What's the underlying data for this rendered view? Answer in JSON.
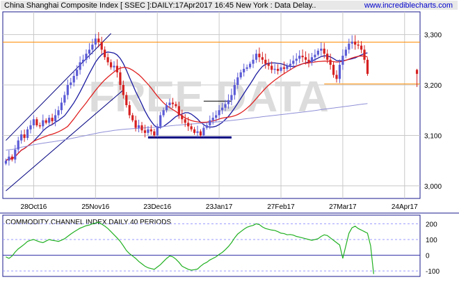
{
  "header": {
    "title": "China Shanghai Composite Index [ SSEC ]:DAILY:17Apr2017 16:45 New York : Data Delay..",
    "site": "www.incrediblecharts.com"
  },
  "watermark": "FREE DATA",
  "colors": {
    "background": "#ffffff",
    "border": "#1a1a8c",
    "grid": "#c8c8c8",
    "up_candle": "#5b5bd6",
    "down_candle": "#d62020",
    "ma_short": "#1a1aa0",
    "ma_mid": "#e02020",
    "ma_long": "#8f8fd8",
    "orange_line": "#ff8c00",
    "channel": "#000080",
    "support": "#000080",
    "cci_line": "#20b020",
    "cci_level": "#9999ff",
    "watermark": "#dcdcdc",
    "header_bg": "#e8e8e8"
  },
  "chart_data": [
    {
      "type": "candlestick",
      "title": "China Shanghai Composite Index [ SSEC ]:DAILY:17Apr2017 16:45 New York : Data Delay..",
      "y_ticks": [
        "3,000",
        "3,100",
        "3,200",
        "3,300"
      ],
      "y_tick_values": [
        3000,
        3100,
        3200,
        3300
      ],
      "ylim": [
        2975,
        3345
      ],
      "x_ticks": [
        {
          "label": "28Oct16",
          "index": 9
        },
        {
          "label": "25Nov16",
          "index": 29
        },
        {
          "label": "23Dec16",
          "index": 49
        },
        {
          "label": "23Jan17",
          "index": 69
        },
        {
          "label": "27Feb17",
          "index": 89
        },
        {
          "label": "27Mar17",
          "index": 109
        },
        {
          "label": "24Apr17",
          "index": 129
        }
      ],
      "x_range": [
        -1,
        134
      ],
      "grid": true,
      "closes": [
        3050,
        3058,
        3052,
        3072,
        3090,
        3102,
        3095,
        3112,
        3120,
        3132,
        3120,
        3118,
        3130,
        3125,
        3135,
        3128,
        3140,
        3150,
        3165,
        3180,
        3200,
        3205,
        3218,
        3230,
        3245,
        3250,
        3262,
        3270,
        3280,
        3292,
        3285,
        3270,
        3255,
        3245,
        3235,
        3238,
        3225,
        3200,
        3180,
        3160,
        3140,
        3130,
        3115,
        3120,
        3110,
        3105,
        3112,
        3108,
        3100,
        3118,
        3140,
        3150,
        3160,
        3165,
        3162,
        3158,
        3140,
        3132,
        3125,
        3118,
        3112,
        3105,
        3108,
        3100,
        3115,
        3120,
        3130,
        3135,
        3140,
        3150,
        3155,
        3162,
        3170,
        3180,
        3200,
        3215,
        3225,
        3232,
        3235,
        3242,
        3250,
        3262,
        3255,
        3250,
        3242,
        3238,
        3230,
        3232,
        3228,
        3235,
        3232,
        3238,
        3242,
        3248,
        3252,
        3258,
        3255,
        3250,
        3245,
        3255,
        3260,
        3268,
        3272,
        3262,
        3250,
        3240,
        3220,
        3212,
        3240,
        3258,
        3270,
        3282,
        3286,
        3280,
        3278,
        3270,
        3250,
        3222
      ],
      "series": [
        {
          "name": "",
          "values_from": "closes",
          "type": "line",
          "period": 10
        },
        {
          "name": "",
          "values_from": "closes",
          "type": "line",
          "period": 21
        },
        {
          "name": "",
          "values_from": "closes",
          "type": "line",
          "period": 100
        }
      ],
      "horizontal_lines": [
        3285,
        3202
      ],
      "support_line": {
        "from_index": 46,
        "to_index": 73,
        "value": 3096
      },
      "resistance_line": {
        "from_index": 64,
        "to_index": 73,
        "value": 3168
      },
      "channel_upper": {
        "from_index": 0,
        "from_value": 3090,
        "to_index": 34,
        "to_value": 3302
      },
      "channel_lower": {
        "from_index": 0,
        "from_value": 2990,
        "to_index": 38,
        "to_value": 3190
      },
      "latest_bar": {
        "index": 133,
        "open": 3230,
        "high": 3232,
        "low": 3196,
        "close": 3222
      }
    },
    {
      "type": "line",
      "title": "COMMODITY CHANNEL INDEX DAILY 40 PERIODS",
      "y_ticks": [
        "200",
        "100",
        "0",
        "-100"
      ],
      "y_tick_values": [
        200,
        100,
        0,
        -100
      ],
      "ylim": [
        -135,
        255
      ],
      "level_lines": [
        200,
        100,
        0,
        -100,
        -200
      ],
      "values": [
        -10,
        -20,
        -5,
        20,
        40,
        55,
        70,
        88,
        95,
        100,
        92,
        85,
        80,
        90,
        100,
        95,
        92,
        88,
        96,
        105,
        120,
        135,
        148,
        160,
        172,
        180,
        188,
        192,
        200,
        205,
        210,
        198,
        185,
        170,
        150,
        130,
        110,
        88,
        60,
        30,
        10,
        -5,
        -20,
        -40,
        -55,
        -70,
        -80,
        -85,
        -90,
        -75,
        -60,
        -40,
        -20,
        -5,
        -10,
        -25,
        -45,
        -70,
        -80,
        -90,
        -95,
        -92,
        -88,
        -70,
        -55,
        -45,
        -30,
        -20,
        -10,
        5,
        18,
        35,
        55,
        80,
        110,
        135,
        150,
        165,
        178,
        185,
        190,
        200,
        195,
        180,
        170,
        165,
        160,
        158,
        150,
        140,
        138,
        130,
        132,
        128,
        120,
        115,
        110,
        105,
        100,
        95,
        100,
        105,
        120,
        130,
        125,
        110,
        95,
        80,
        65,
        -20,
        60,
        140,
        175,
        185,
        170,
        160,
        150,
        140,
        60,
        -120
      ]
    }
  ]
}
